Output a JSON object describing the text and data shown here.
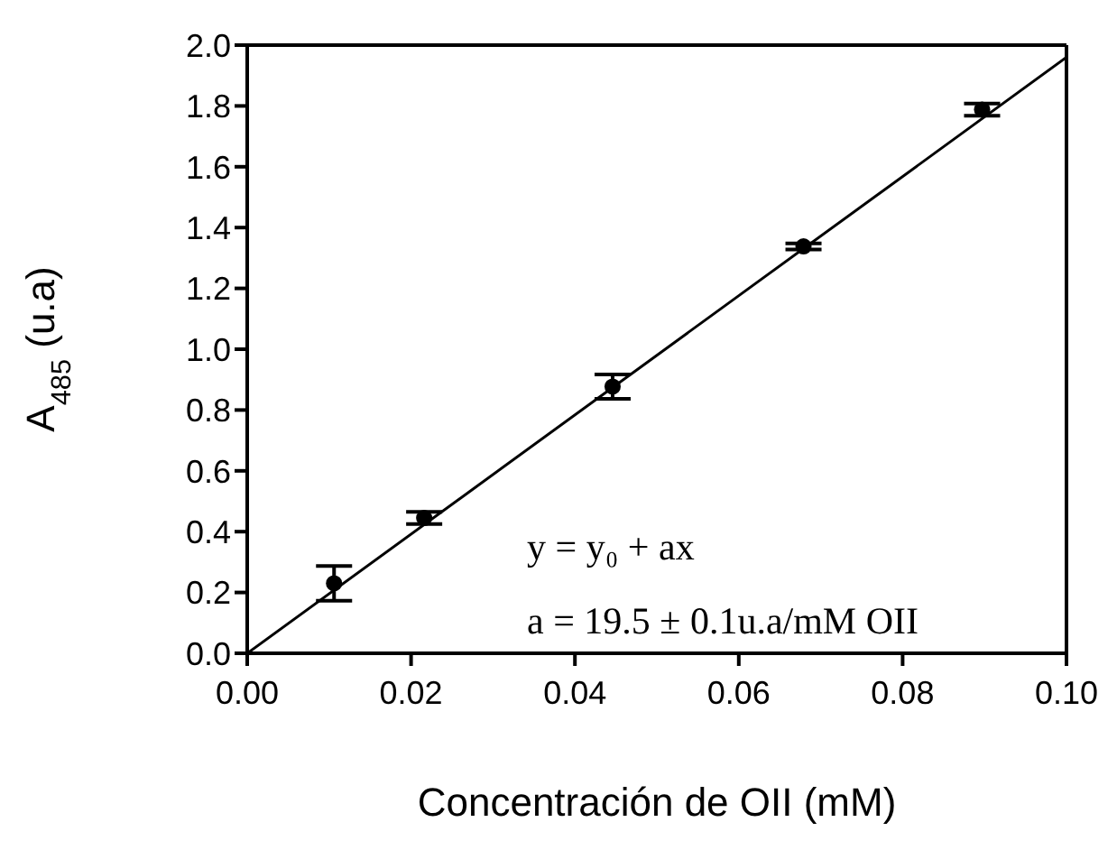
{
  "chart_data": {
    "type": "scatter",
    "xlabel": "Concentración de OII (mM)",
    "ylabel": "A$_{485}$ (u.a)",
    "xlim": [
      0,
      0.1
    ],
    "xticks": [
      {
        "value": 0,
        "label": "0.00"
      },
      {
        "value": 0.02,
        "label": "0.02"
      },
      {
        "value": 0.04,
        "label": "0.04"
      },
      {
        "value": 0.06,
        "label": "0.06"
      },
      {
        "value": 0.08,
        "label": "0.08"
      },
      {
        "value": 0.1,
        "label": "0.10"
      }
    ],
    "ylim": [
      0,
      2
    ],
    "yticks": [
      {
        "value": 0,
        "label": "0.0"
      },
      {
        "value": 0.2,
        "label": "0.2"
      },
      {
        "value": 0.4,
        "label": "0.4"
      },
      {
        "value": 0.6,
        "label": "0.6"
      },
      {
        "value": 0.8,
        "label": "0.8"
      },
      {
        "value": 1,
        "label": "1.0"
      },
      {
        "value": 1.2,
        "label": "1.2"
      },
      {
        "value": 1.4,
        "label": "1.4"
      },
      {
        "value": 1.6,
        "label": "1.6"
      },
      {
        "value": 1.8,
        "label": "1.8"
      },
      {
        "value": 2,
        "label": "2.0"
      }
    ],
    "series": [
      {
        "color": "#000000",
        "marker": "circle",
        "x": [
          0.0106,
          0.0216,
          0.0446,
          0.0679,
          0.0897
        ],
        "values": [
          0.23,
          0.445,
          0.877,
          1.338,
          1.788
        ],
        "errors": [
          0.057,
          0.02,
          0.04,
          0.01,
          0.02
        ]
      },
      {
        "type": "line",
        "color": "#000000",
        "marker": "none",
        "line_style": "solid",
        "x": [
          0,
          0.1
        ],
        "values": [
          0,
          1.96
        ]
      }
    ],
    "annotations": [
      "y = y₀ + ax",
      "a = 19.5 ± 0.1u.a/mM OII"
    ]
  }
}
